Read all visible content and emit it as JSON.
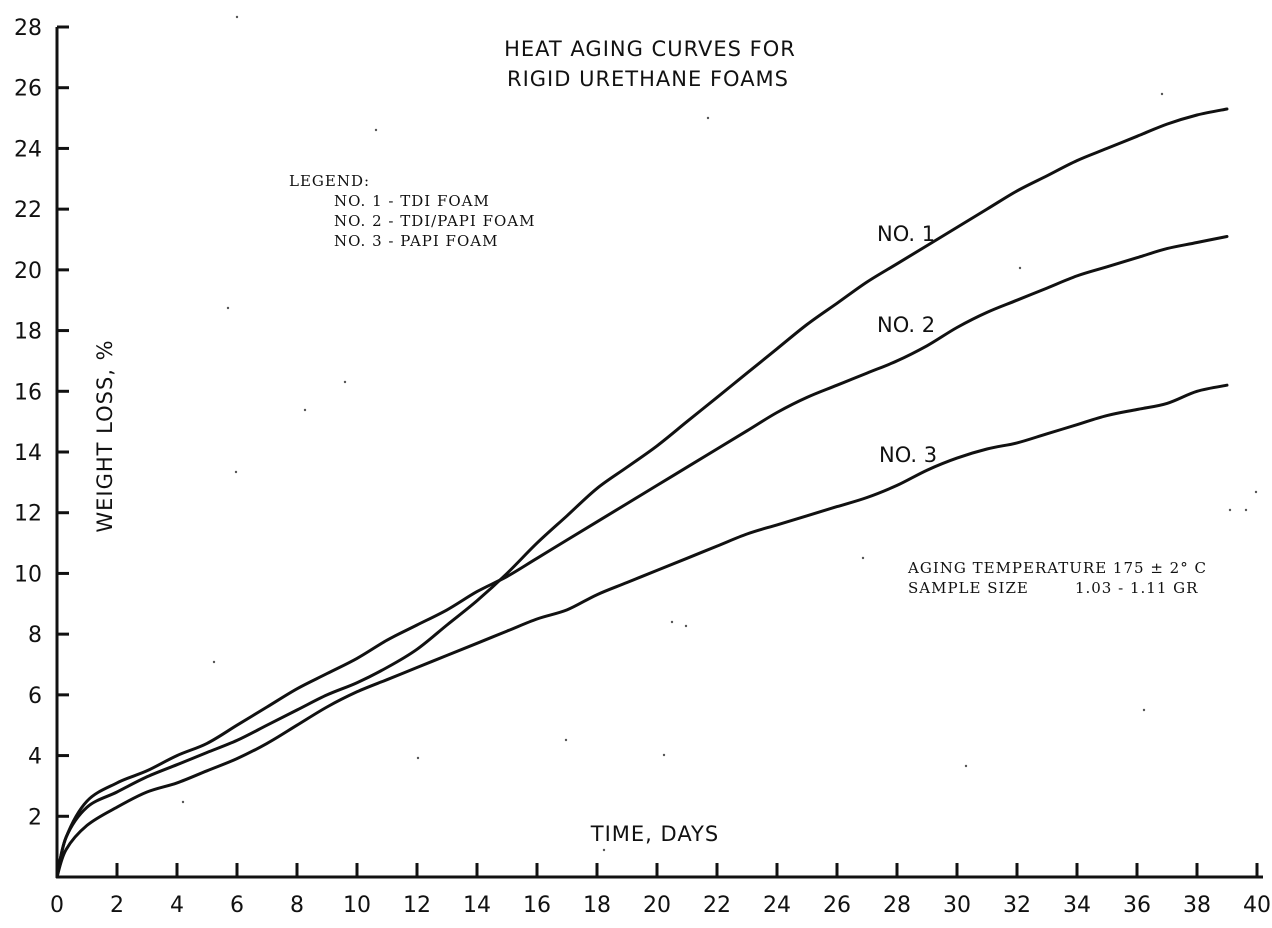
{
  "chart_data": {
    "type": "line",
    "title": [
      "HEAT AGING CURVES FOR",
      "RIGID URETHANE FOAMS"
    ],
    "xlabel": "TIME, DAYS",
    "ylabel": "WEIGHT LOSS, %",
    "xlim": [
      0,
      40
    ],
    "ylim": [
      0,
      28
    ],
    "x_ticks": [
      "0",
      "2",
      "4",
      "6",
      "8",
      "10",
      "12",
      "14",
      "16",
      "18",
      "20",
      "22",
      "24",
      "26",
      "28",
      "30",
      "32",
      "34",
      "36",
      "38",
      "40"
    ],
    "y_ticks": [
      "2",
      "4",
      "6",
      "8",
      "10",
      "12",
      "14",
      "16",
      "18",
      "20",
      "22",
      "24",
      "26",
      "28"
    ],
    "legend": {
      "title": "LEGEND:",
      "entries": [
        "NO. 1 - TDI FOAM",
        "NO. 2 - TDI/PAPI FOAM",
        "NO. 3 - PAPI FOAM"
      ]
    },
    "annotations": [
      "AGING TEMPERATURE 175 ± 2° C",
      "SAMPLE SIZE        1.03 - 1.11 GR"
    ],
    "grid": false,
    "series": [
      {
        "name": "NO. 1",
        "x": [
          0,
          0.3,
          1,
          2,
          3,
          4,
          5,
          6,
          7,
          8,
          9,
          10,
          11,
          12,
          13,
          14,
          15,
          16,
          17,
          18,
          19,
          20,
          21,
          22,
          23,
          24,
          25,
          26,
          27,
          28,
          29,
          30,
          31,
          32,
          33,
          34,
          35,
          36,
          37,
          38,
          39
        ],
        "y": [
          0,
          1.3,
          2.3,
          2.8,
          3.3,
          3.7,
          4.1,
          4.5,
          5.0,
          5.5,
          6.0,
          6.4,
          6.9,
          7.5,
          8.3,
          9.1,
          10.0,
          11.0,
          11.9,
          12.8,
          13.5,
          14.2,
          15.0,
          15.8,
          16.6,
          17.4,
          18.2,
          18.9,
          19.6,
          20.2,
          20.8,
          21.4,
          22.0,
          22.6,
          23.1,
          23.6,
          24.0,
          24.4,
          24.8,
          25.1,
          25.3
        ]
      },
      {
        "name": "NO. 2",
        "x": [
          0,
          0.3,
          1,
          2,
          3,
          4,
          5,
          6,
          7,
          8,
          9,
          10,
          11,
          12,
          13,
          14,
          15,
          16,
          17,
          18,
          19,
          20,
          21,
          22,
          23,
          24,
          25,
          26,
          27,
          28,
          29,
          30,
          31,
          32,
          33,
          34,
          35,
          36,
          37,
          38,
          39
        ],
        "y": [
          0,
          1.3,
          2.5,
          3.1,
          3.5,
          4.0,
          4.4,
          5.0,
          5.6,
          6.2,
          6.7,
          7.2,
          7.8,
          8.3,
          8.8,
          9.4,
          9.9,
          10.5,
          11.1,
          11.7,
          12.3,
          12.9,
          13.5,
          14.1,
          14.7,
          15.3,
          15.8,
          16.2,
          16.6,
          17.0,
          17.5,
          18.1,
          18.6,
          19.0,
          19.4,
          19.8,
          20.1,
          20.4,
          20.7,
          20.9,
          21.1
        ]
      },
      {
        "name": "NO. 3",
        "x": [
          0,
          0.3,
          1,
          2,
          3,
          4,
          5,
          6,
          7,
          8,
          9,
          10,
          11,
          12,
          13,
          14,
          15,
          16,
          17,
          18,
          19,
          20,
          21,
          22,
          23,
          24,
          25,
          26,
          27,
          28,
          29,
          30,
          31,
          32,
          33,
          34,
          35,
          36,
          37,
          38,
          39
        ],
        "y": [
          0,
          0.9,
          1.7,
          2.3,
          2.8,
          3.1,
          3.5,
          3.9,
          4.4,
          5.0,
          5.6,
          6.1,
          6.5,
          6.9,
          7.3,
          7.7,
          8.1,
          8.5,
          8.8,
          9.3,
          9.7,
          10.1,
          10.5,
          10.9,
          11.3,
          11.6,
          11.9,
          12.2,
          12.5,
          12.9,
          13.4,
          13.8,
          14.1,
          14.3,
          14.6,
          14.9,
          15.2,
          15.4,
          15.6,
          16.0,
          16.2
        ]
      }
    ]
  }
}
